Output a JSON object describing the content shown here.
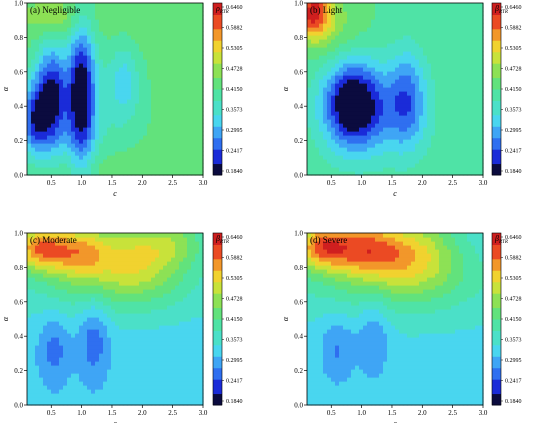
{
  "palette": [
    "#0b0b3f",
    "#1a2bd8",
    "#2f6ff0",
    "#3fa5f5",
    "#49d6ef",
    "#4be0c8",
    "#4fe3a6",
    "#62e27c",
    "#8de155",
    "#c8e23a",
    "#f1d22f",
    "#f2972a",
    "#eb4a23",
    "#cf1f1f",
    "#999999"
  ],
  "chart_data": [
    {
      "type": "heatmap",
      "title": "(a) Negligible",
      "xlabel": "c",
      "ylabel": "α",
      "xlim": [
        0.1,
        3.0
      ],
      "ylim": [
        0.0,
        1.0
      ],
      "x_ticks": [
        "0.5",
        "1.0",
        "1.5",
        "2.0",
        "2.5",
        "3.0"
      ],
      "y_ticks": [
        "0.0",
        "0.2",
        "0.4",
        "0.6",
        "0.8",
        "1.0"
      ],
      "colorbar_title": "ρ",
      "colorbar_subscript": "RTR",
      "colorbar_ticks": [
        "0.6460",
        "0.5882",
        "0.5305",
        "0.4728",
        "0.4150",
        "0.3573",
        "0.2995",
        "0.2417",
        "0.1840"
      ],
      "zlim": [
        0.184,
        0.646
      ],
      "background": 0.44,
      "features": [
        {
          "x": 0.5,
          "y": 0.45,
          "amp": -0.2,
          "sx": 0.18,
          "sy": 0.22
        },
        {
          "x": 1.0,
          "y": 0.48,
          "amp": -0.22,
          "sx": 0.16,
          "sy": 0.3
        },
        {
          "x": 0.2,
          "y": 0.32,
          "amp": -0.14,
          "sx": 0.15,
          "sy": 0.15
        },
        {
          "x": 1.7,
          "y": 0.55,
          "amp": -0.08,
          "sx": 0.18,
          "sy": 0.15
        },
        {
          "x": 0.9,
          "y": 0.35,
          "amp": -0.06,
          "sx": 0.9,
          "sy": 0.3
        },
        {
          "x": 0.6,
          "y": 0.9,
          "amp": 0.05,
          "sx": 0.35,
          "sy": 0.08
        },
        {
          "x": 1.3,
          "y": 0.05,
          "amp": 0.02,
          "sx": 1.2,
          "sy": 0.08
        }
      ]
    },
    {
      "type": "heatmap",
      "title": "(b) Light",
      "xlabel": "c",
      "ylabel": "α",
      "xlim": [
        0.1,
        3.0
      ],
      "ylim": [
        0.0,
        1.0
      ],
      "x_ticks": [
        "0.5",
        "1.0",
        "1.5",
        "2.0",
        "2.5",
        "3.0"
      ],
      "y_ticks": [
        "0.0",
        "0.2",
        "0.4",
        "0.6",
        "0.8",
        "1.0"
      ],
      "colorbar_title": "β",
      "colorbar_subscript": "RTR",
      "colorbar_ticks": [
        "0.6460",
        "0.5882",
        "0.5305",
        "0.4728",
        "0.4150",
        "0.3573",
        "0.2995",
        "0.2417",
        "0.1840"
      ],
      "zlim": [
        0.184,
        0.646
      ],
      "background": 0.41,
      "features": [
        {
          "x": 0.85,
          "y": 0.42,
          "amp": -0.22,
          "sx": 0.35,
          "sy": 0.18
        },
        {
          "x": 0.8,
          "y": 0.42,
          "amp": -0.08,
          "sx": 0.08,
          "sy": 0.07
        },
        {
          "x": 1.75,
          "y": 0.45,
          "amp": -0.12,
          "sx": 0.22,
          "sy": 0.2
        },
        {
          "x": 1.3,
          "y": 0.35,
          "amp": -0.06,
          "sx": 0.6,
          "sy": 0.2
        },
        {
          "x": 0.2,
          "y": 0.95,
          "amp": 0.2,
          "sx": 0.2,
          "sy": 0.1
        },
        {
          "x": 0.5,
          "y": 0.85,
          "amp": 0.05,
          "sx": 0.4,
          "sy": 0.15
        }
      ]
    },
    {
      "type": "heatmap",
      "title": "(c) Moderate",
      "xlabel": "c",
      "ylabel": "α",
      "xlim": [
        0.1,
        3.0
      ],
      "ylim": [
        0.0,
        1.0
      ],
      "x_ticks": [
        "0.5",
        "1.0",
        "1.5",
        "2.0",
        "2.5",
        "3.0"
      ],
      "y_ticks": [
        "0.0",
        "0.2",
        "0.4",
        "0.6",
        "0.8",
        "1.0"
      ],
      "colorbar_title": "β",
      "colorbar_subscript": "RTR",
      "colorbar_ticks": [
        "0.6460",
        "0.5882",
        "0.5305",
        "0.4728",
        "0.4150",
        "0.3573",
        "0.2995",
        "0.2417",
        "0.1840"
      ],
      "zlim": [
        0.184,
        0.646
      ],
      "background": 0.33,
      "features": [
        {
          "x": 0.55,
          "y": 0.33,
          "amp": -0.06,
          "sx": 0.18,
          "sy": 0.15
        },
        {
          "x": 1.2,
          "y": 0.4,
          "amp": -0.07,
          "sx": 0.18,
          "sy": 0.18
        },
        {
          "x": 0.3,
          "y": 0.92,
          "amp": 0.22,
          "sx": 0.35,
          "sy": 0.1
        },
        {
          "x": 1.0,
          "y": 0.9,
          "amp": 0.16,
          "sx": 0.35,
          "sy": 0.12
        },
        {
          "x": 1.9,
          "y": 0.88,
          "amp": 0.14,
          "sx": 0.5,
          "sy": 0.15
        },
        {
          "x": 2.6,
          "y": 0.95,
          "amp": 0.08,
          "sx": 0.4,
          "sy": 0.1
        },
        {
          "x": 1.5,
          "y": 0.7,
          "amp": 0.08,
          "sx": 1.2,
          "sy": 0.15
        }
      ]
    },
    {
      "type": "heatmap",
      "title": "(d) Severe",
      "xlabel": "c",
      "ylabel": "α",
      "xlim": [
        0.1,
        3.0
      ],
      "ylim": [
        0.0,
        1.0
      ],
      "x_ticks": [
        "0.5",
        "1.0",
        "1.5",
        "2.0",
        "2.5",
        "3.0"
      ],
      "y_ticks": [
        "0.0",
        "0.2",
        "0.4",
        "0.6",
        "0.8",
        "1.0"
      ],
      "colorbar_title": "β",
      "colorbar_subscript": "RTR",
      "colorbar_ticks": [
        "0.6460",
        "0.5882",
        "0.5305",
        "0.4728",
        "0.4150",
        "0.3573",
        "0.2995",
        "0.2417",
        "0.1840"
      ],
      "zlim": [
        0.184,
        0.646
      ],
      "background": 0.34,
      "features": [
        {
          "x": 0.6,
          "y": 0.33,
          "amp": -0.06,
          "sx": 0.2,
          "sy": 0.15
        },
        {
          "x": 1.2,
          "y": 0.4,
          "amp": -0.06,
          "sx": 0.18,
          "sy": 0.18
        },
        {
          "x": 0.35,
          "y": 0.93,
          "amp": 0.22,
          "sx": 0.35,
          "sy": 0.1
        },
        {
          "x": 1.1,
          "y": 0.92,
          "amp": 0.18,
          "sx": 0.4,
          "sy": 0.12
        },
        {
          "x": 1.9,
          "y": 0.9,
          "amp": 0.14,
          "sx": 0.5,
          "sy": 0.15
        },
        {
          "x": 1.5,
          "y": 0.72,
          "amp": 0.08,
          "sx": 1.2,
          "sy": 0.15
        }
      ]
    }
  ]
}
